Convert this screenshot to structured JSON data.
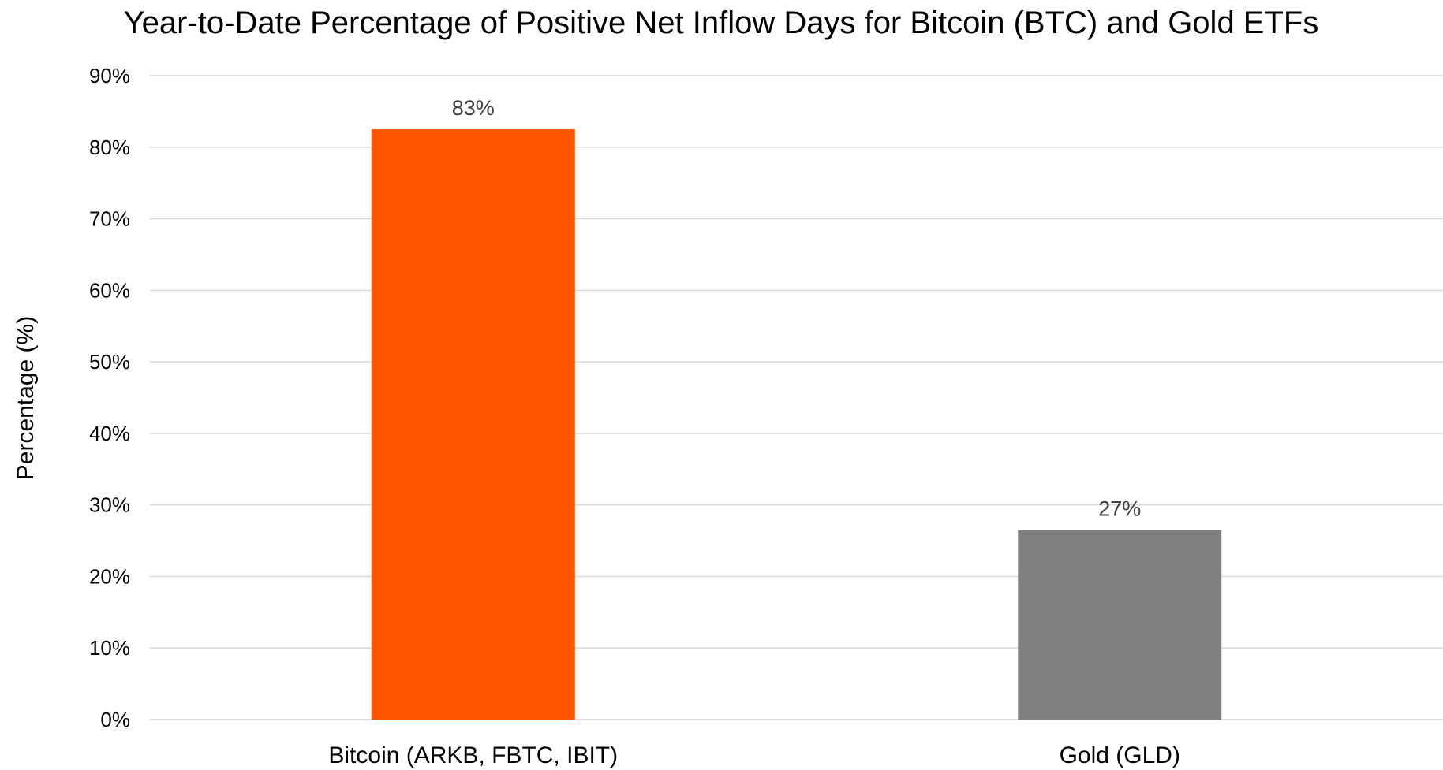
{
  "chart_data": {
    "type": "bar",
    "title": "Year-to-Date Percentage of Positive Net Inflow Days for Bitcoin (BTC) and Gold ETFs",
    "xlabel": "",
    "ylabel": "Percentage (%)",
    "ylim": [
      0,
      90
    ],
    "yticks": [
      "0%",
      "10%",
      "20%",
      "30%",
      "40%",
      "50%",
      "60%",
      "70%",
      "80%",
      "90%"
    ],
    "categories": [
      "Bitcoin (ARKB, FBTC, IBIT)",
      "Gold (GLD)"
    ],
    "values": [
      82.5,
      26.5
    ],
    "data_labels": [
      "83%",
      "27%"
    ],
    "colors": [
      "#FF5500",
      "#808080"
    ],
    "grid": true,
    "legend": "none"
  }
}
